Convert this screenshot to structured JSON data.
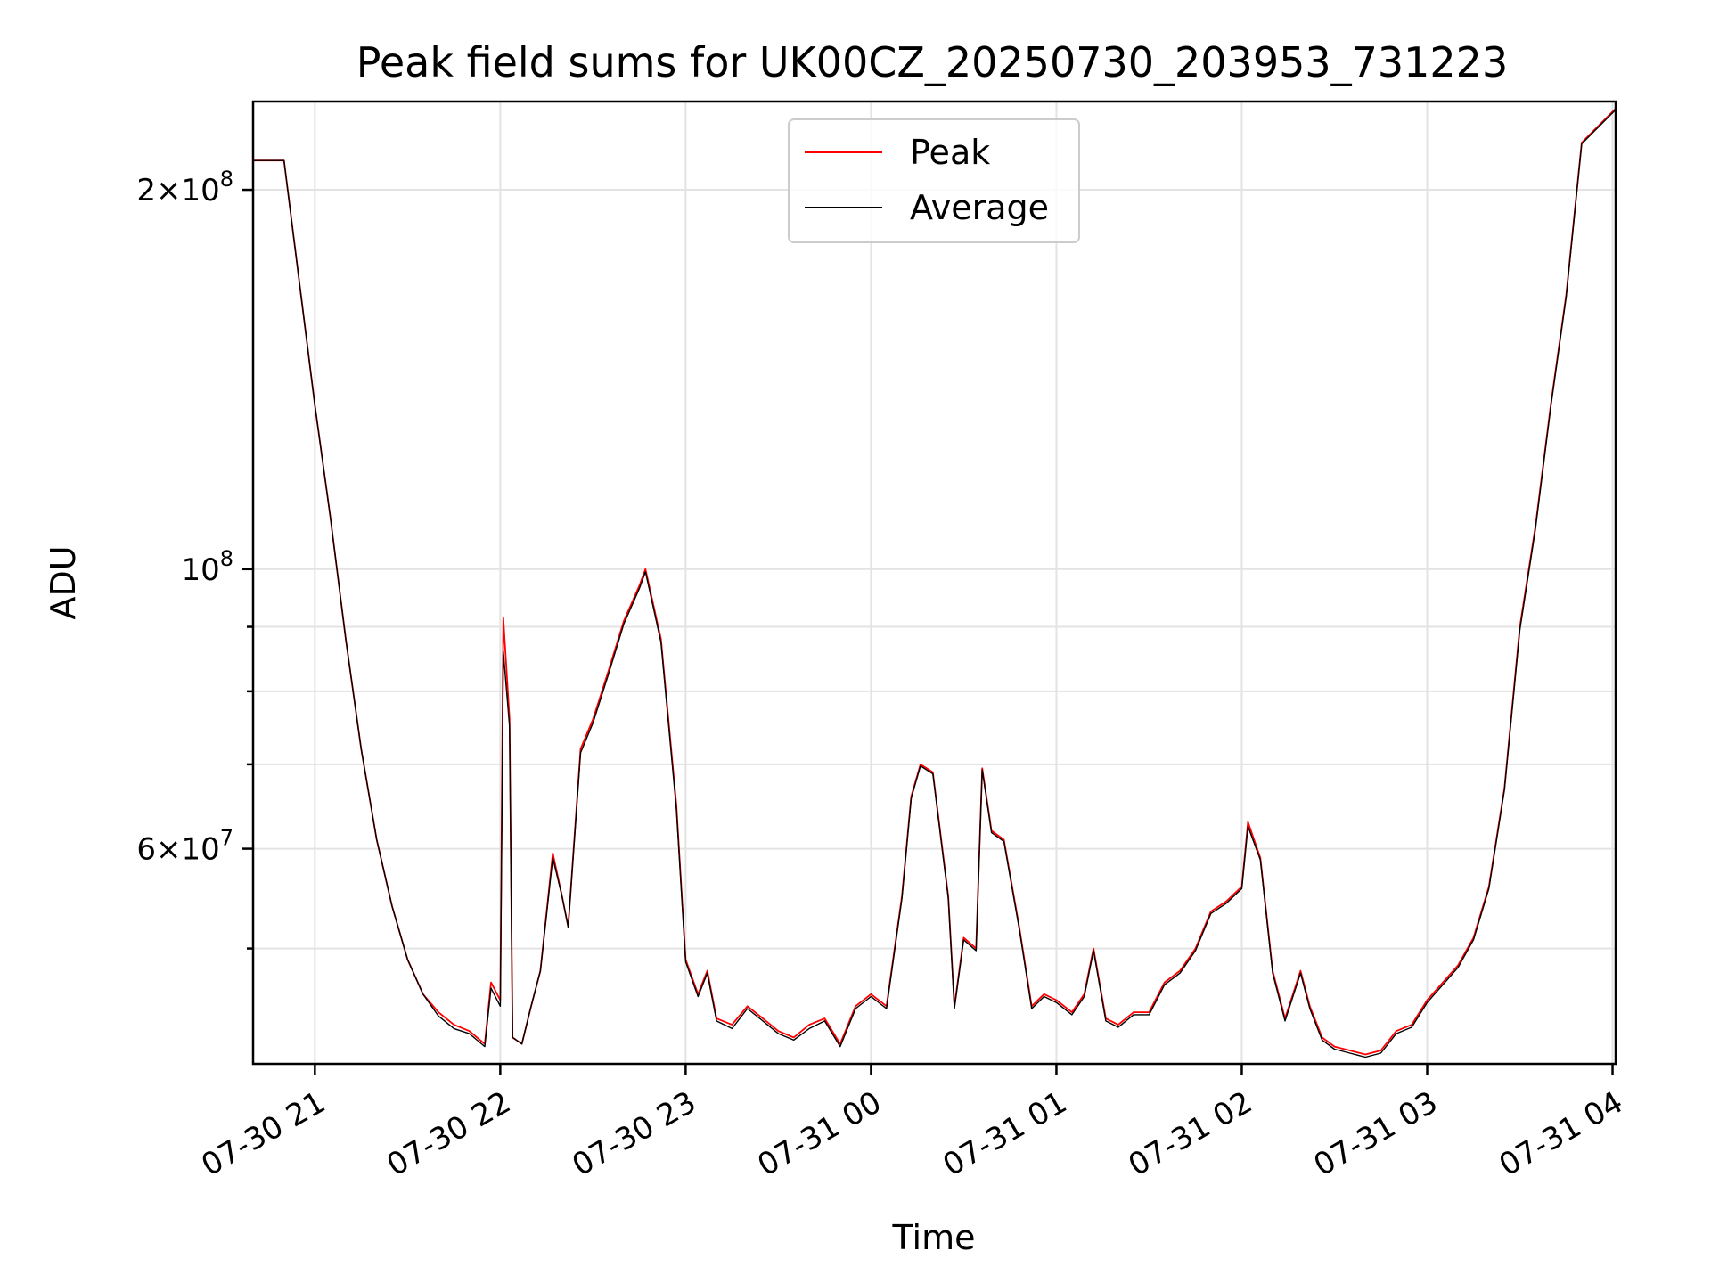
{
  "chart_data": {
    "type": "line",
    "title": "Peak field sums for UK00CZ_20250730_203953_731223",
    "xlabel": "Time",
    "ylabel": "ADU",
    "yscale": "log",
    "grid": true,
    "legend_placement": "upper-center",
    "x_ticks": [
      {
        "value": "2025-07-30T21:00",
        "label": "07-30 21"
      },
      {
        "value": "2025-07-30T22:00",
        "label": "07-30 22"
      },
      {
        "value": "2025-07-30T23:00",
        "label": "07-30 23"
      },
      {
        "value": "2025-07-31T00:00",
        "label": "07-31 00"
      },
      {
        "value": "2025-07-31T01:00",
        "label": "07-31 01"
      },
      {
        "value": "2025-07-31T02:00",
        "label": "07-31 02"
      },
      {
        "value": "2025-07-31T03:00",
        "label": "07-31 03"
      },
      {
        "value": "2025-07-31T04:00",
        "label": "07-31 04"
      }
    ],
    "y_major_ticks": [
      {
        "value": 200000000,
        "mantissa": "2",
        "exponent": "8",
        "label": "2×10^8"
      },
      {
        "value": 100000000,
        "mantissa": "",
        "exponent": "8",
        "label": "10^8"
      },
      {
        "value": 60000000,
        "mantissa": "6",
        "exponent": "7",
        "label": "6×10^7"
      }
    ],
    "y_minor_ticks": [
      50000000,
      70000000,
      80000000,
      90000000
    ],
    "xlim": [
      "2025-07-30T20:40",
      "2025-07-31T04:01"
    ],
    "ylim": [
      40500000,
      235000000
    ],
    "colors": {
      "peak": "#ff0000",
      "average": "#000000"
    },
    "series": [
      {
        "name": "Peak",
        "color": "#ff0000",
        "points": [
          [
            "2025-07-30T20:40",
            211000000
          ],
          [
            "2025-07-30T20:50",
            211000000
          ],
          [
            "2025-07-30T21:00",
            135000000
          ],
          [
            "2025-07-30T21:05",
            110000000
          ],
          [
            "2025-07-30T21:10",
            88000000
          ],
          [
            "2025-07-30T21:15",
            72000000
          ],
          [
            "2025-07-30T21:20",
            61000000
          ],
          [
            "2025-07-30T21:25",
            54000000
          ],
          [
            "2025-07-30T21:30",
            49000000
          ],
          [
            "2025-07-30T21:35",
            46000000
          ],
          [
            "2025-07-30T21:40",
            44500000
          ],
          [
            "2025-07-30T21:45",
            43500000
          ],
          [
            "2025-07-30T21:50",
            43000000
          ],
          [
            "2025-07-30T21:55",
            42000000
          ],
          [
            "2025-07-30T21:57",
            47000000
          ],
          [
            "2025-07-30T22:00",
            45500000
          ],
          [
            "2025-07-30T22:01",
            91500000
          ],
          [
            "2025-07-30T22:03",
            76000000
          ],
          [
            "2025-07-30T22:04",
            42500000
          ],
          [
            "2025-07-30T22:07",
            42000000
          ],
          [
            "2025-07-30T22:10",
            45000000
          ],
          [
            "2025-07-30T22:13",
            48000000
          ],
          [
            "2025-07-30T22:17",
            59500000
          ],
          [
            "2025-07-30T22:20",
            55000000
          ],
          [
            "2025-07-30T22:22",
            52000000
          ],
          [
            "2025-07-30T22:26",
            72000000
          ],
          [
            "2025-07-30T22:30",
            76000000
          ],
          [
            "2025-07-30T22:35",
            83000000
          ],
          [
            "2025-07-30T22:40",
            91000000
          ],
          [
            "2025-07-30T22:45",
            97000000
          ],
          [
            "2025-07-30T22:47",
            100000000
          ],
          [
            "2025-07-30T22:52",
            88000000
          ],
          [
            "2025-07-30T22:57",
            65000000
          ],
          [
            "2025-07-30T23:00",
            49000000
          ],
          [
            "2025-07-30T23:04",
            46000000
          ],
          [
            "2025-07-30T23:07",
            48000000
          ],
          [
            "2025-07-30T23:10",
            44000000
          ],
          [
            "2025-07-30T23:15",
            43500000
          ],
          [
            "2025-07-30T23:20",
            45000000
          ],
          [
            "2025-07-30T23:25",
            44000000
          ],
          [
            "2025-07-30T23:30",
            43000000
          ],
          [
            "2025-07-30T23:35",
            42500000
          ],
          [
            "2025-07-30T23:40",
            43500000
          ],
          [
            "2025-07-30T23:45",
            44000000
          ],
          [
            "2025-07-30T23:50",
            42000000
          ],
          [
            "2025-07-30T23:55",
            45000000
          ],
          [
            "2025-07-31T00:00",
            46000000
          ],
          [
            "2025-07-31T00:05",
            45000000
          ],
          [
            "2025-07-31T00:10",
            55000000
          ],
          [
            "2025-07-31T00:13",
            66000000
          ],
          [
            "2025-07-31T00:16",
            70000000
          ],
          [
            "2025-07-31T00:20",
            69000000
          ],
          [
            "2025-07-31T00:25",
            55000000
          ],
          [
            "2025-07-31T00:27",
            45000000
          ],
          [
            "2025-07-31T00:30",
            51000000
          ],
          [
            "2025-07-31T00:34",
            50000000
          ],
          [
            "2025-07-31T00:36",
            69500000
          ],
          [
            "2025-07-31T00:39",
            62000000
          ],
          [
            "2025-07-31T00:43",
            61000000
          ],
          [
            "2025-07-31T00:48",
            52000000
          ],
          [
            "2025-07-31T00:52",
            45000000
          ],
          [
            "2025-07-31T00:56",
            46000000
          ],
          [
            "2025-07-31T01:00",
            45500000
          ],
          [
            "2025-07-31T01:05",
            44500000
          ],
          [
            "2025-07-31T01:09",
            46000000
          ],
          [
            "2025-07-31T01:12",
            50000000
          ],
          [
            "2025-07-31T01:16",
            44000000
          ],
          [
            "2025-07-31T01:20",
            43500000
          ],
          [
            "2025-07-31T01:25",
            44500000
          ],
          [
            "2025-07-31T01:30",
            44500000
          ],
          [
            "2025-07-31T01:35",
            47000000
          ],
          [
            "2025-07-31T01:40",
            48000000
          ],
          [
            "2025-07-31T01:45",
            50000000
          ],
          [
            "2025-07-31T01:50",
            53500000
          ],
          [
            "2025-07-31T01:55",
            54500000
          ],
          [
            "2025-07-31T02:00",
            56000000
          ],
          [
            "2025-07-31T02:02",
            63000000
          ],
          [
            "2025-07-31T02:06",
            59000000
          ],
          [
            "2025-07-31T02:10",
            48000000
          ],
          [
            "2025-07-31T02:14",
            44000000
          ],
          [
            "2025-07-31T02:19",
            48000000
          ],
          [
            "2025-07-31T02:22",
            45000000
          ],
          [
            "2025-07-31T02:26",
            42500000
          ],
          [
            "2025-07-31T02:30",
            41800000
          ],
          [
            "2025-07-31T02:35",
            41500000
          ],
          [
            "2025-07-31T02:40",
            41200000
          ],
          [
            "2025-07-31T02:45",
            41500000
          ],
          [
            "2025-07-31T02:50",
            43000000
          ],
          [
            "2025-07-31T02:55",
            43500000
          ],
          [
            "2025-07-31T03:00",
            45500000
          ],
          [
            "2025-07-31T03:10",
            48500000
          ],
          [
            "2025-07-31T03:15",
            51000000
          ],
          [
            "2025-07-31T03:20",
            56000000
          ],
          [
            "2025-07-31T03:25",
            67000000
          ],
          [
            "2025-07-31T03:30",
            90000000
          ],
          [
            "2025-07-31T03:35",
            108000000
          ],
          [
            "2025-07-31T03:40",
            135000000
          ],
          [
            "2025-07-31T03:45",
            165000000
          ],
          [
            "2025-07-31T03:50",
            218000000
          ],
          [
            "2025-07-31T04:01",
            232000000
          ]
        ]
      },
      {
        "name": "Average",
        "color": "#000000",
        "points": [
          [
            "2025-07-30T20:40",
            211000000
          ],
          [
            "2025-07-30T20:50",
            211000000
          ],
          [
            "2025-07-30T21:00",
            135000000
          ],
          [
            "2025-07-30T21:05",
            110000000
          ],
          [
            "2025-07-30T21:10",
            88000000
          ],
          [
            "2025-07-30T21:15",
            72000000
          ],
          [
            "2025-07-30T21:20",
            61000000
          ],
          [
            "2025-07-30T21:25",
            54000000
          ],
          [
            "2025-07-30T21:30",
            49000000
          ],
          [
            "2025-07-30T21:35",
            46000000
          ],
          [
            "2025-07-30T21:40",
            44200000
          ],
          [
            "2025-07-30T21:45",
            43200000
          ],
          [
            "2025-07-30T21:50",
            42800000
          ],
          [
            "2025-07-30T21:55",
            41800000
          ],
          [
            "2025-07-30T21:57",
            46500000
          ],
          [
            "2025-07-30T22:00",
            45000000
          ],
          [
            "2025-07-30T22:01",
            86000000
          ],
          [
            "2025-07-30T22:03",
            75000000
          ],
          [
            "2025-07-30T22:04",
            42500000
          ],
          [
            "2025-07-30T22:07",
            42000000
          ],
          [
            "2025-07-30T22:10",
            45000000
          ],
          [
            "2025-07-30T22:13",
            48000000
          ],
          [
            "2025-07-30T22:17",
            59000000
          ],
          [
            "2025-07-30T22:20",
            55000000
          ],
          [
            "2025-07-30T22:22",
            52000000
          ],
          [
            "2025-07-30T22:26",
            71500000
          ],
          [
            "2025-07-30T22:30",
            75500000
          ],
          [
            "2025-07-30T22:35",
            82500000
          ],
          [
            "2025-07-30T22:40",
            90500000
          ],
          [
            "2025-07-30T22:45",
            96500000
          ],
          [
            "2025-07-30T22:47",
            99500000
          ],
          [
            "2025-07-30T22:52",
            87500000
          ],
          [
            "2025-07-30T22:57",
            64500000
          ],
          [
            "2025-07-30T23:00",
            48800000
          ],
          [
            "2025-07-30T23:04",
            45800000
          ],
          [
            "2025-07-30T23:07",
            47800000
          ],
          [
            "2025-07-30T23:10",
            43800000
          ],
          [
            "2025-07-30T23:15",
            43200000
          ],
          [
            "2025-07-30T23:20",
            44800000
          ],
          [
            "2025-07-30T23:25",
            43800000
          ],
          [
            "2025-07-30T23:30",
            42800000
          ],
          [
            "2025-07-30T23:35",
            42300000
          ],
          [
            "2025-07-30T23:40",
            43200000
          ],
          [
            "2025-07-30T23:45",
            43800000
          ],
          [
            "2025-07-30T23:50",
            41800000
          ],
          [
            "2025-07-30T23:55",
            44800000
          ],
          [
            "2025-07-31T00:00",
            45800000
          ],
          [
            "2025-07-31T00:05",
            44800000
          ],
          [
            "2025-07-31T00:10",
            54800000
          ],
          [
            "2025-07-31T00:13",
            65800000
          ],
          [
            "2025-07-31T00:16",
            69800000
          ],
          [
            "2025-07-31T00:20",
            68800000
          ],
          [
            "2025-07-31T00:25",
            54800000
          ],
          [
            "2025-07-31T00:27",
            44800000
          ],
          [
            "2025-07-31T00:30",
            50800000
          ],
          [
            "2025-07-31T00:34",
            49800000
          ],
          [
            "2025-07-31T00:36",
            69300000
          ],
          [
            "2025-07-31T00:39",
            61800000
          ],
          [
            "2025-07-31T00:43",
            60800000
          ],
          [
            "2025-07-31T00:48",
            51800000
          ],
          [
            "2025-07-31T00:52",
            44800000
          ],
          [
            "2025-07-31T00:56",
            45800000
          ],
          [
            "2025-07-31T01:00",
            45300000
          ],
          [
            "2025-07-31T01:05",
            44300000
          ],
          [
            "2025-07-31T01:09",
            45800000
          ],
          [
            "2025-07-31T01:12",
            49800000
          ],
          [
            "2025-07-31T01:16",
            43800000
          ],
          [
            "2025-07-31T01:20",
            43300000
          ],
          [
            "2025-07-31T01:25",
            44300000
          ],
          [
            "2025-07-31T01:30",
            44300000
          ],
          [
            "2025-07-31T01:35",
            46800000
          ],
          [
            "2025-07-31T01:40",
            47800000
          ],
          [
            "2025-07-31T01:45",
            49800000
          ],
          [
            "2025-07-31T01:50",
            53300000
          ],
          [
            "2025-07-31T01:55",
            54300000
          ],
          [
            "2025-07-31T02:00",
            55800000
          ],
          [
            "2025-07-31T02:02",
            62500000
          ],
          [
            "2025-07-31T02:06",
            58800000
          ],
          [
            "2025-07-31T02:10",
            47800000
          ],
          [
            "2025-07-31T02:14",
            43800000
          ],
          [
            "2025-07-31T02:19",
            47800000
          ],
          [
            "2025-07-31T02:22",
            44800000
          ],
          [
            "2025-07-31T02:26",
            42300000
          ],
          [
            "2025-07-31T02:30",
            41600000
          ],
          [
            "2025-07-31T02:35",
            41300000
          ],
          [
            "2025-07-31T02:40",
            41000000
          ],
          [
            "2025-07-31T02:45",
            41300000
          ],
          [
            "2025-07-31T02:50",
            42800000
          ],
          [
            "2025-07-31T02:55",
            43300000
          ],
          [
            "2025-07-31T03:00",
            45300000
          ],
          [
            "2025-07-31T03:10",
            48300000
          ],
          [
            "2025-07-31T03:15",
            50800000
          ],
          [
            "2025-07-31T03:20",
            55800000
          ],
          [
            "2025-07-31T03:25",
            66800000
          ],
          [
            "2025-07-31T03:30",
            89500000
          ],
          [
            "2025-07-31T03:35",
            107500000
          ],
          [
            "2025-07-31T03:40",
            134500000
          ],
          [
            "2025-07-31T03:45",
            164500000
          ],
          [
            "2025-07-31T03:50",
            217500000
          ],
          [
            "2025-07-31T04:01",
            231500000
          ]
        ]
      }
    ]
  }
}
